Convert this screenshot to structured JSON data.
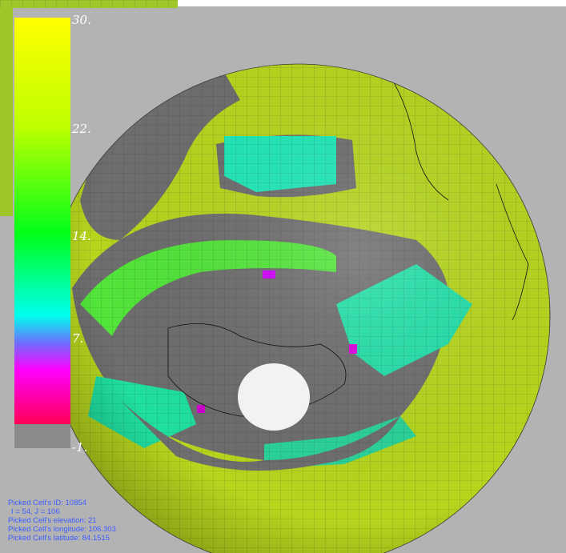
{
  "colors": {
    "background": "#b3b3b3",
    "land_grey": "#6e6e6e",
    "ocean_yellow_green": "#b6d61e",
    "nodata": "#8a8a8a"
  },
  "colorbar": {
    "ticks": [
      "30.",
      "22.",
      "14.",
      "7.",
      "-1."
    ],
    "stops": [
      {
        "color": "#ffff00",
        "value": 30
      },
      {
        "color": "#bfff00",
        "value": 22
      },
      {
        "color": "#00ff1a",
        "value": 14
      },
      {
        "color": "#00ffee",
        "value": 8
      },
      {
        "color": "#6f6fff",
        "value": 6
      },
      {
        "color": "#ff00ff",
        "value": 4
      },
      {
        "color": "#ff0055",
        "value": 0
      }
    ],
    "nodata_color": "#8a8a8a"
  },
  "info": {
    "cell_id": "Picked Cell's ID: 10854",
    "ij": "I = 54, J = 106",
    "elevation": "Picked Cell's elevation: 21",
    "longitude": "Picked Cell's longitude: 106.303",
    "latitude": "Picked Cell's latitude: 84.1515"
  },
  "icons": {
    "globe": "globe-icon",
    "pole": "pole-cap-icon"
  }
}
